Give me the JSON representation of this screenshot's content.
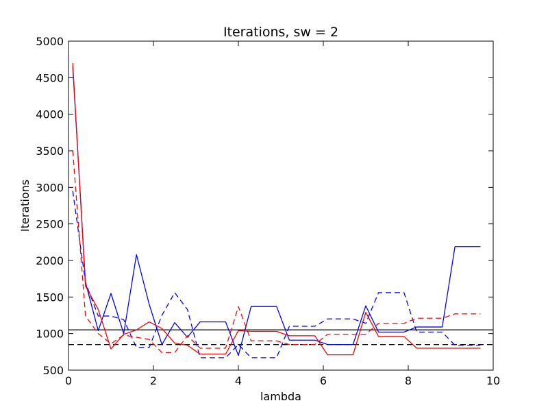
{
  "chart_data": {
    "type": "line",
    "title": "Iterations, sw = 2",
    "xlabel": "lambda",
    "ylabel": "Iterations",
    "xlim": [
      0,
      10
    ],
    "ylim": [
      500,
      5000
    ],
    "xticks": [
      0,
      2,
      4,
      6,
      8,
      10
    ],
    "yticks": [
      500,
      1000,
      1500,
      2000,
      2500,
      3000,
      3500,
      4000,
      4500,
      5000
    ],
    "grid": false,
    "legend": "none",
    "series": [
      {
        "color": "#0000ff",
        "style": "solid",
        "x": [
          0.1,
          0.4,
          0.7,
          1.0,
          1.3,
          1.6,
          1.9,
          2.2,
          2.5,
          2.8,
          3.1,
          3.4,
          3.7,
          4.0,
          4.3,
          4.6,
          4.9,
          5.2,
          5.5,
          5.8,
          6.1,
          6.4,
          6.7,
          7.0,
          7.3,
          7.6,
          7.9,
          8.2,
          8.5,
          8.8,
          9.1,
          9.4,
          9.7
        ],
        "y": [
          4650,
          1700,
          1040,
          1550,
          1000,
          2080,
          1400,
          850,
          1150,
          950,
          1160,
          1160,
          1160,
          700,
          1370,
          1370,
          1370,
          910,
          910,
          910,
          850,
          850,
          850,
          1380,
          1020,
          1020,
          1020,
          1090,
          1090,
          1090,
          2190,
          2190,
          2190
        ]
      },
      {
        "color": "#0000ff",
        "style": "dashed",
        "x": [
          0.1,
          0.4,
          0.7,
          1.0,
          1.3,
          1.6,
          1.9,
          2.2,
          2.5,
          2.8,
          3.1,
          3.4,
          3.7,
          4.0,
          4.3,
          4.6,
          4.9,
          5.2,
          5.5,
          5.8,
          6.1,
          6.4,
          6.7,
          7.0,
          7.3,
          7.6,
          7.9,
          8.2,
          8.5,
          8.8,
          9.1,
          9.4,
          9.7
        ],
        "y": [
          2950,
          1700,
          1240,
          1240,
          1190,
          810,
          810,
          1250,
          1560,
          1330,
          670,
          670,
          670,
          850,
          670,
          670,
          670,
          1100,
          1100,
          1100,
          1200,
          1200,
          1200,
          1140,
          1560,
          1560,
          1560,
          1020,
          1020,
          1020,
          840,
          840,
          840
        ]
      },
      {
        "color": "#ff0000",
        "style": "solid",
        "x": [
          0.1,
          0.4,
          0.7,
          1.0,
          1.3,
          1.6,
          1.9,
          2.2,
          2.5,
          2.8,
          3.1,
          3.4,
          3.7,
          4.0,
          4.3,
          4.6,
          4.9,
          5.2,
          5.5,
          5.8,
          6.1,
          6.4,
          6.7,
          7.0,
          7.3,
          7.6,
          7.9,
          8.2,
          8.5,
          8.8,
          9.1,
          9.4,
          9.7
        ],
        "y": [
          4700,
          1650,
          1330,
          790,
          990,
          1050,
          1160,
          1070,
          870,
          840,
          720,
          720,
          720,
          1040,
          1030,
          1030,
          1030,
          970,
          970,
          970,
          710,
          710,
          710,
          1290,
          960,
          960,
          960,
          800,
          800,
          800,
          800,
          800,
          800
        ]
      },
      {
        "color": "#ff0000",
        "style": "dashed",
        "x": [
          0.1,
          0.4,
          0.7,
          1.0,
          1.3,
          1.6,
          1.9,
          2.2,
          2.5,
          2.8,
          3.1,
          3.4,
          3.7,
          4.0,
          4.3,
          4.6,
          4.9,
          5.2,
          5.5,
          5.8,
          6.1,
          6.4,
          6.7,
          7.0,
          7.3,
          7.6,
          7.9,
          8.2,
          8.5,
          8.8,
          9.1,
          9.4,
          9.7
        ],
        "y": [
          3500,
          1240,
          1000,
          860,
          980,
          950,
          920,
          740,
          740,
          970,
          800,
          800,
          800,
          1370,
          900,
          900,
          900,
          850,
          850,
          850,
          990,
          990,
          990,
          990,
          1140,
          1140,
          1140,
          1210,
          1210,
          1210,
          1270,
          1270,
          1270
        ]
      }
    ],
    "reference_lines": [
      {
        "y": 1050,
        "color": "#000000",
        "style": "solid"
      },
      {
        "y": 850,
        "color": "#000000",
        "style": "dashed"
      }
    ]
  }
}
